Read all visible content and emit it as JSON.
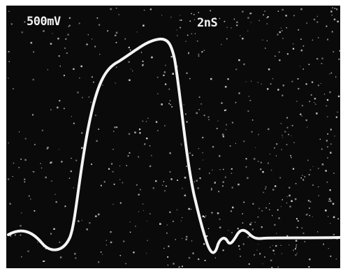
{
  "screen": {
    "volts_per_div": "500mV",
    "time_per_div": "2nS"
  }
}
